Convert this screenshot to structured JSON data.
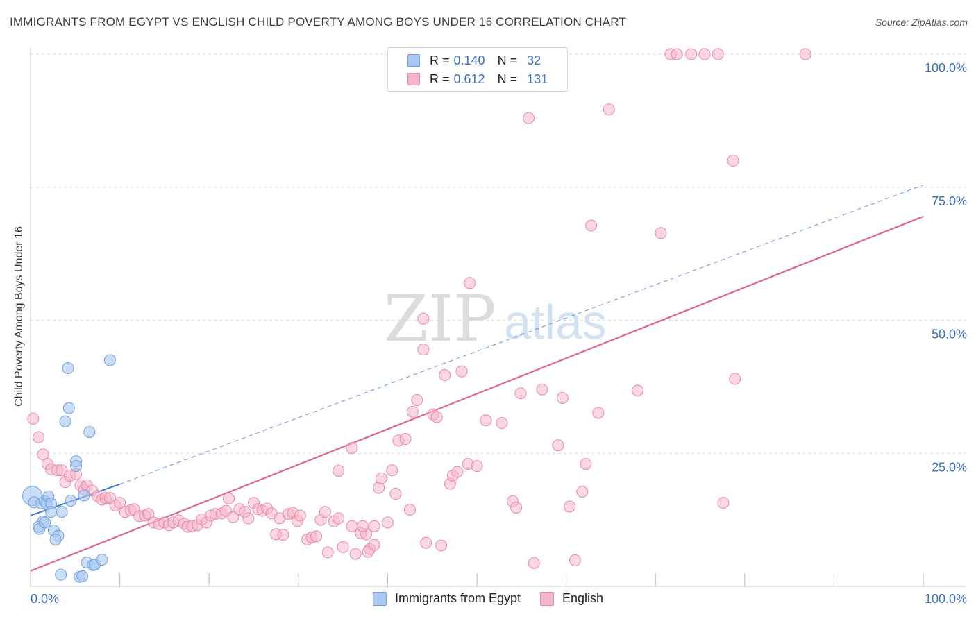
{
  "title": "IMMIGRANTS FROM EGYPT VS ENGLISH CHILD POVERTY AMONG BOYS UNDER 16 CORRELATION CHART",
  "source": "Source: ZipAtlas.com",
  "watermark": {
    "zip": "ZIP",
    "atlas": "atlas"
  },
  "legend": {
    "r_label": "R =",
    "n_label": "N =",
    "rows": [
      {
        "r": "0.140",
        "n": "32"
      },
      {
        "r": "0.612",
        "n": "131"
      }
    ]
  },
  "bottom_legend": [
    "Immigrants from Egypt",
    "English"
  ],
  "colors": {
    "blue_fill": "#a9c8f2",
    "blue_stroke": "#6f9fdc",
    "blue_line": "#3a78d0",
    "pink_fill": "#f6b6c9",
    "pink_stroke": "#e889a7",
    "pink_line": "#e0648f",
    "grid": "#d5d5d5",
    "axis_text": "#3a70c2"
  },
  "chart_data": {
    "type": "scatter",
    "title": "IMMIGRANTS FROM EGYPT VS ENGLISH CHILD POVERTY AMONG BOYS UNDER 16 CORRELATION CHART",
    "xlabel": "",
    "ylabel": "Child Poverty Among Boys Under 16",
    "xlim": [
      0,
      100
    ],
    "ylim": [
      0,
      100
    ],
    "x_tick_labels": [
      "0.0%",
      "100.0%"
    ],
    "y_ticks": [
      25,
      50,
      75,
      100
    ],
    "y_tick_labels": [
      "25.0%",
      "50.0%",
      "75.0%",
      "100.0%"
    ],
    "series": [
      {
        "name": "Immigrants from Egypt",
        "r": 0.14,
        "n": 32,
        "trend": {
          "x0": 0,
          "y0": 13.3,
          "x1": 10,
          "y1": 19.2,
          "dashed_to_x": 100,
          "dashed_to_y": 75.4
        },
        "points": [
          [
            0.2,
            17.0,
            14
          ],
          [
            0.4,
            15.8,
            8
          ],
          [
            1.2,
            15.6,
            8
          ],
          [
            1.6,
            16.0,
            8
          ],
          [
            1.8,
            15.5,
            8
          ],
          [
            2.0,
            16.9,
            8
          ],
          [
            2.3,
            15.6,
            8
          ],
          [
            1.4,
            12.2,
            8
          ],
          [
            0.9,
            11.2,
            8
          ],
          [
            1.0,
            10.8,
            8
          ],
          [
            1.6,
            12.0,
            8
          ],
          [
            2.3,
            14.0,
            8
          ],
          [
            3.5,
            14.0,
            8
          ],
          [
            4.5,
            16.1,
            8
          ],
          [
            6.0,
            17.1,
            8
          ],
          [
            5.1,
            23.5,
            8
          ],
          [
            5.1,
            22.6,
            8
          ],
          [
            2.6,
            10.5,
            8
          ],
          [
            3.1,
            9.5,
            8
          ],
          [
            2.8,
            8.8,
            8
          ],
          [
            4.3,
            33.5,
            8
          ],
          [
            3.9,
            31.0,
            8
          ],
          [
            4.2,
            41.0,
            8
          ],
          [
            6.6,
            29.0,
            8
          ],
          [
            8.9,
            42.5,
            8
          ],
          [
            6.3,
            4.5,
            8
          ],
          [
            7.0,
            4.0,
            8
          ],
          [
            7.2,
            4.1,
            8
          ],
          [
            8.0,
            5.0,
            8
          ],
          [
            3.4,
            2.2,
            8
          ],
          [
            5.5,
            1.8,
            8
          ],
          [
            5.8,
            1.9,
            8
          ]
        ]
      },
      {
        "name": "English",
        "r": 0.612,
        "n": 131,
        "trend": {
          "x0": 0,
          "y0": 2.9,
          "x1": 100,
          "y1": 69.5
        },
        "points": [
          [
            0.3,
            31.5
          ],
          [
            0.9,
            28.0
          ],
          [
            1.4,
            24.8
          ],
          [
            1.9,
            23.0
          ],
          [
            2.3,
            22.0
          ],
          [
            3.0,
            21.8
          ],
          [
            3.5,
            21.8
          ],
          [
            3.9,
            19.6
          ],
          [
            4.4,
            20.8
          ],
          [
            5.1,
            21.1
          ],
          [
            5.6,
            19.0
          ],
          [
            6.0,
            18.2
          ],
          [
            6.3,
            19.0
          ],
          [
            6.9,
            18.0
          ],
          [
            7.5,
            17.0
          ],
          [
            8.0,
            16.3
          ],
          [
            8.4,
            16.6
          ],
          [
            8.9,
            16.6
          ],
          [
            9.5,
            15.2
          ],
          [
            10.0,
            15.7
          ],
          [
            10.6,
            14.0
          ],
          [
            11.2,
            14.3
          ],
          [
            11.6,
            14.5
          ],
          [
            12.2,
            13.2
          ],
          [
            12.8,
            13.3
          ],
          [
            13.2,
            13.6
          ],
          [
            13.8,
            12.0
          ],
          [
            14.4,
            11.7
          ],
          [
            15.0,
            12.0
          ],
          [
            15.5,
            11.5
          ],
          [
            16.0,
            12.0
          ],
          [
            16.6,
            12.4
          ],
          [
            17.2,
            11.8
          ],
          [
            17.6,
            11.2
          ],
          [
            18.1,
            11.3
          ],
          [
            18.7,
            11.5
          ],
          [
            19.2,
            12.6
          ],
          [
            19.7,
            12.0
          ],
          [
            20.2,
            13.3
          ],
          [
            20.7,
            13.6
          ],
          [
            21.4,
            13.7
          ],
          [
            21.9,
            14.2
          ],
          [
            22.2,
            16.5
          ],
          [
            22.7,
            13.0
          ],
          [
            23.4,
            14.5
          ],
          [
            24.0,
            14.0
          ],
          [
            24.4,
            12.8
          ],
          [
            25.0,
            15.7
          ],
          [
            25.5,
            14.5
          ],
          [
            26.0,
            14.2
          ],
          [
            26.5,
            14.6
          ],
          [
            27.0,
            13.7
          ],
          [
            27.5,
            9.8
          ],
          [
            27.9,
            12.8
          ],
          [
            28.3,
            9.7
          ],
          [
            28.9,
            13.6
          ],
          [
            29.4,
            13.8
          ],
          [
            29.9,
            12.3
          ],
          [
            30.2,
            13.3
          ],
          [
            31.0,
            8.8
          ],
          [
            31.5,
            9.2
          ],
          [
            32.0,
            9.4
          ],
          [
            32.5,
            12.5
          ],
          [
            33.0,
            14.0
          ],
          [
            33.3,
            6.4
          ],
          [
            34.0,
            12.2
          ],
          [
            34.5,
            12.8
          ],
          [
            35.0,
            7.4
          ],
          [
            36.0,
            11.3
          ],
          [
            36.4,
            6.1
          ],
          [
            37.0,
            10.0
          ],
          [
            37.6,
            9.8
          ],
          [
            37.2,
            11.3
          ],
          [
            38.0,
            7.0
          ],
          [
            38.5,
            11.3
          ],
          [
            34.5,
            21.7
          ],
          [
            36.0,
            26.0
          ],
          [
            37.8,
            6.5
          ],
          [
            38.5,
            7.8
          ],
          [
            39.0,
            18.5
          ],
          [
            39.3,
            20.3
          ],
          [
            40.0,
            12.0
          ],
          [
            40.5,
            21.8
          ],
          [
            40.9,
            17.4
          ],
          [
            41.2,
            27.4
          ],
          [
            42.0,
            27.7
          ],
          [
            42.5,
            14.4
          ],
          [
            42.8,
            32.8
          ],
          [
            43.3,
            35.0
          ],
          [
            44.0,
            44.5
          ],
          [
            44.3,
            8.2
          ],
          [
            45.1,
            32.3
          ],
          [
            45.5,
            31.8
          ],
          [
            46.0,
            7.7
          ],
          [
            46.4,
            39.7
          ],
          [
            47.0,
            19.3
          ],
          [
            47.3,
            20.8
          ],
          [
            47.8,
            21.5
          ],
          [
            48.3,
            40.4
          ],
          [
            49.0,
            23.0
          ],
          [
            50.0,
            22.6
          ],
          [
            51.0,
            31.2
          ],
          [
            52.8,
            30.7
          ],
          [
            54.0,
            16.0
          ],
          [
            54.4,
            14.8
          ],
          [
            54.9,
            36.3
          ],
          [
            55.8,
            88.0
          ],
          [
            56.4,
            4.4
          ],
          [
            57.3,
            37.0
          ],
          [
            59.1,
            26.5
          ],
          [
            59.6,
            35.4
          ],
          [
            60.4,
            15.0
          ],
          [
            61.0,
            4.9
          ],
          [
            61.8,
            17.8
          ],
          [
            62.2,
            23.0
          ],
          [
            62.8,
            67.8
          ],
          [
            63.6,
            32.6
          ],
          [
            64.8,
            89.6
          ],
          [
            68.0,
            36.8
          ],
          [
            70.6,
            66.4
          ],
          [
            71.7,
            100
          ],
          [
            72.4,
            100
          ],
          [
            74.0,
            100
          ],
          [
            75.5,
            100
          ],
          [
            77.0,
            100
          ],
          [
            78.9,
            39.0
          ],
          [
            77.6,
            15.7
          ],
          [
            78.7,
            80.0
          ],
          [
            86.8,
            100
          ],
          [
            44.0,
            50.3
          ],
          [
            49.2,
            57.0
          ]
        ]
      }
    ]
  }
}
